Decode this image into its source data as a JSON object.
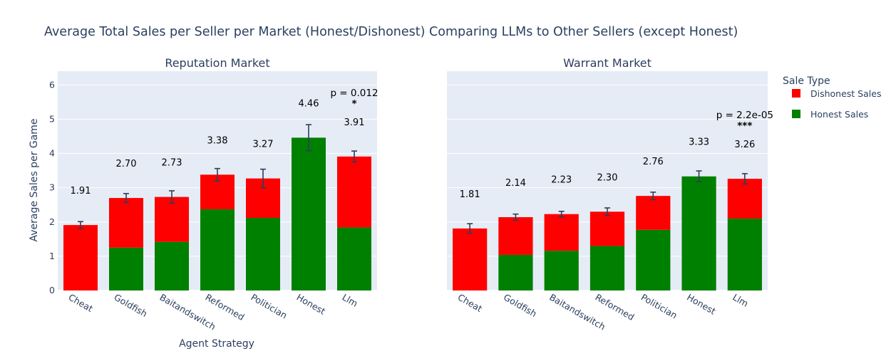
{
  "chart_data": {
    "type": "bar",
    "barmode": "stack",
    "title": "Average Total Sales per Seller per Market (Honest/Dishonest) Comparing LLMs to Other Sellers (except Honest)",
    "xlabel": "Agent Strategy",
    "ylabel": "Average Sales per Game",
    "ylim": [
      0,
      6.4
    ],
    "yticks": [
      0,
      1,
      2,
      3,
      4,
      5,
      6
    ],
    "grid": true,
    "legend": {
      "title": "Sale Type",
      "placement": "right",
      "items": [
        {
          "name": "Dishonest Sales",
          "color": "#ff0000"
        },
        {
          "name": "Honest Sales",
          "color": "#008000"
        }
      ]
    },
    "categories": [
      "Cheat",
      "Goldfish",
      "Baitandswitch",
      "Reformed",
      "Politician",
      "Honest",
      "Llm"
    ],
    "panels": [
      {
        "title": "Reputation Market",
        "series": [
          {
            "name": "Honest Sales",
            "color": "#008000",
            "values": [
              0,
              1.25,
              1.42,
              2.37,
              2.12,
              4.46,
              1.84
            ]
          },
          {
            "name": "Dishonest Sales",
            "color": "#ff0000",
            "values": [
              1.91,
              1.45,
              1.31,
              1.01,
              1.15,
              0,
              2.07
            ]
          }
        ],
        "totals": [
          1.91,
          2.7,
          2.73,
          3.38,
          3.27,
          4.46,
          3.91
        ],
        "total_labels": [
          "1.91",
          "2.70",
          "2.73",
          "3.38",
          "3.27",
          "4.46",
          "3.91"
        ],
        "error": [
          0.1,
          0.13,
          0.18,
          0.18,
          0.27,
          0.38,
          0.16
        ],
        "annotation": {
          "category": "Llm",
          "pvalue": "p = 0.012",
          "stars": "*"
        }
      },
      {
        "title": "Warrant Market",
        "series": [
          {
            "name": "Honest Sales",
            "color": "#008000",
            "values": [
              0,
              1.04,
              1.16,
              1.3,
              1.77,
              3.33,
              2.1
            ]
          },
          {
            "name": "Dishonest Sales",
            "color": "#ff0000",
            "values": [
              1.81,
              1.1,
              1.07,
              1.0,
              0.99,
              0,
              1.16
            ]
          }
        ],
        "totals": [
          1.81,
          2.14,
          2.23,
          2.3,
          2.76,
          3.33,
          3.26
        ],
        "total_labels": [
          "1.81",
          "2.14",
          "2.23",
          "2.30",
          "2.76",
          "3.33",
          "3.26"
        ],
        "error": [
          0.14,
          0.09,
          0.08,
          0.11,
          0.11,
          0.16,
          0.15
        ],
        "annotation": {
          "category": "Llm",
          "pvalue": "p = 2.2e-05",
          "stars": "***"
        }
      }
    ]
  }
}
